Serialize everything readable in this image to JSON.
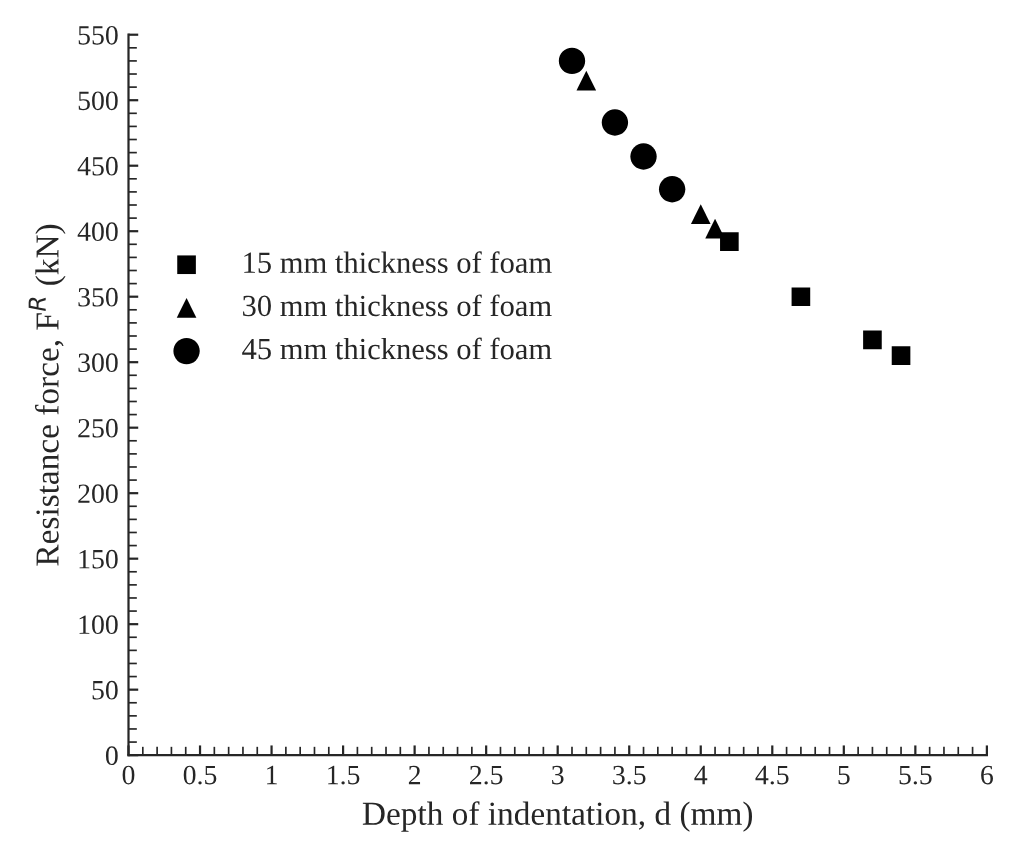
{
  "chart_data": {
    "type": "scatter",
    "xlabel": "Depth of indentation, d (mm)",
    "ylabel": "Resistance force, F$^{R}$ (kN)",
    "series": [
      {
        "name": "15 mm thickness of foam",
        "color": "#000000",
        "marker": "square",
        "x": [
          4.2,
          4.7,
          5.2,
          5.4
        ],
        "values": [
          392,
          350,
          317,
          305
        ]
      },
      {
        "name": "30 mm thickness of foam",
        "color": "#000000",
        "marker": "triangle",
        "x": [
          3.2,
          4.0,
          4.1
        ],
        "values": [
          515,
          413,
          402
        ]
      },
      {
        "name": "45 mm thickness of foam",
        "color": "#000000",
        "marker": "circle",
        "x": [
          3.1,
          3.4,
          3.6,
          3.8
        ],
        "values": [
          530,
          483,
          457,
          432
        ]
      }
    ],
    "xlim": [
      0,
      6
    ],
    "xticks": [
      0,
      0.5,
      1,
      1.5,
      2,
      2.5,
      3,
      3.5,
      4,
      4.5,
      5,
      5.5,
      6
    ],
    "ylim": [
      0,
      550
    ],
    "yticks": [
      0,
      50,
      100,
      150,
      200,
      250,
      300,
      350,
      400,
      450,
      500,
      550
    ],
    "grid": false,
    "legend": "left"
  }
}
